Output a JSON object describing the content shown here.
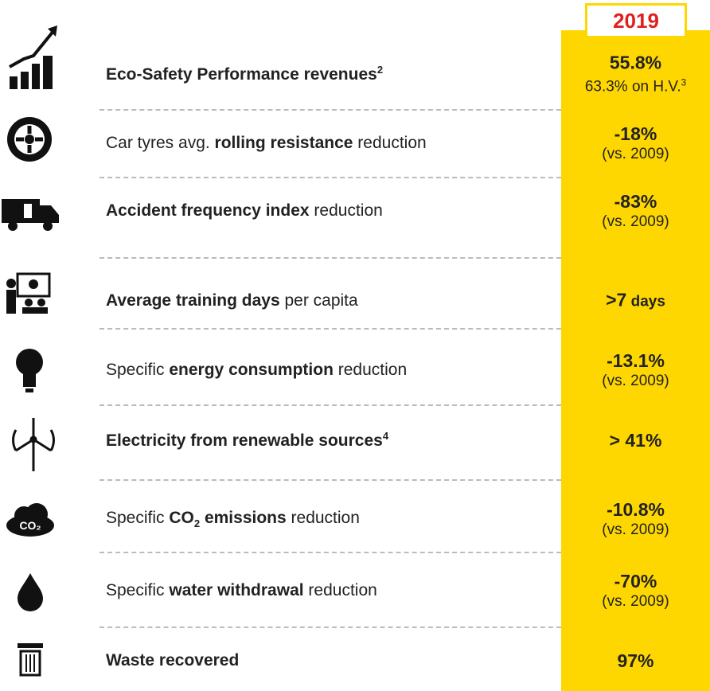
{
  "header": {
    "year": "2019"
  },
  "rows": [
    {
      "label": [
        {
          "text": "Eco-Safety Performance revenues",
          "weight": "bold"
        },
        {
          "text": "2",
          "weight": "bold",
          "pos": "sup"
        }
      ],
      "value": [
        {
          "text": "55.8%"
        }
      ],
      "note": [
        {
          "text": "63.3% on H.V."
        },
        {
          "text": "3",
          "pos": "sup"
        }
      ]
    },
    {
      "label": [
        {
          "text": "Car tyres avg. "
        },
        {
          "text": "rolling resistance",
          "weight": "bold"
        },
        {
          "text": " reduction"
        }
      ],
      "value": [
        {
          "text": "-18%"
        }
      ],
      "note": [
        {
          "text": "(vs. 2009)"
        }
      ]
    },
    {
      "label": [
        {
          "text": "Accident frequency index",
          "weight": "bold"
        },
        {
          "text": " reduction"
        }
      ],
      "value": [
        {
          "text": "-83%"
        }
      ],
      "note": [
        {
          "text": "(vs. 2009)"
        }
      ]
    },
    {
      "label": [
        {
          "text": "Average training days",
          "weight": "bold"
        },
        {
          "text": " per capita"
        }
      ],
      "value": [
        {
          "text": ">7"
        },
        {
          "text": " days",
          "size": "small"
        }
      ]
    },
    {
      "label": [
        {
          "text": "Specific "
        },
        {
          "text": "energy consumption",
          "weight": "bold"
        },
        {
          "text": " reduction"
        }
      ],
      "value": [
        {
          "text": "-13.1%"
        }
      ],
      "note": [
        {
          "text": "(vs. 2009)"
        }
      ]
    },
    {
      "label": [
        {
          "text": "Electricity from renewable sources",
          "weight": "bold"
        },
        {
          "text": "4",
          "weight": "bold",
          "pos": "sup"
        }
      ],
      "value": [
        {
          "text": "> 41%"
        }
      ]
    },
    {
      "label": [
        {
          "text": "Specific "
        },
        {
          "text": "CO",
          "weight": "bold"
        },
        {
          "text": "2",
          "weight": "bold",
          "pos": "sub"
        },
        {
          "text": " emissions",
          "weight": "bold"
        },
        {
          "text": " reduction"
        }
      ],
      "value": [
        {
          "text": "-10.8%"
        }
      ],
      "note": [
        {
          "text": "(vs. 2009)"
        }
      ]
    },
    {
      "label": [
        {
          "text": "Specific "
        },
        {
          "text": "water withdrawal",
          "weight": "bold"
        },
        {
          "text": " reduction"
        }
      ],
      "value": [
        {
          "text": "-70%"
        }
      ],
      "note": [
        {
          "text": "(vs. 2009)"
        }
      ]
    },
    {
      "label": [
        {
          "text": "Waste recovered",
          "weight": "bold"
        }
      ],
      "value": [
        {
          "text": "97%"
        }
      ]
    }
  ]
}
